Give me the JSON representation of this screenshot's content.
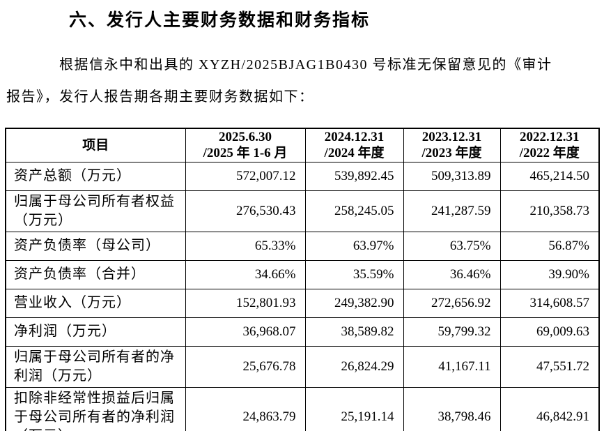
{
  "page": {
    "title": "六、发行人主要财务数据和财务指标",
    "paragraph": {
      "line1": "根据信永中和出具的 XYZH/2025BJAG1B0430 号标准无保留意见的《审计",
      "line2": "报告》，发行人报告期各期主要财务数据如下："
    }
  },
  "table": {
    "columns": [
      {
        "label": "项目"
      },
      {
        "line1": "2025.6.30",
        "line2": "/2025 年 1-6 月"
      },
      {
        "line1": "2024.12.31",
        "line2": "/2024 年度"
      },
      {
        "line1": "2023.12.31",
        "line2": "/2023 年度"
      },
      {
        "line1": "2022.12.31",
        "line2": "/2022 年度"
      }
    ],
    "rows": [
      {
        "label": "资产总额（万元）",
        "values": [
          "572,007.12",
          "539,892.45",
          "509,313.89",
          "465,214.50"
        ]
      },
      {
        "label": "归属于母公司所有者权益（万元）",
        "values": [
          "276,530.43",
          "258,245.05",
          "241,287.59",
          "210,358.73"
        ]
      },
      {
        "label": "资产负债率（母公司）",
        "values": [
          "65.33%",
          "63.97%",
          "63.75%",
          "56.87%"
        ]
      },
      {
        "label": "资产负债率（合并）",
        "values": [
          "34.66%",
          "35.59%",
          "36.46%",
          "39.90%"
        ]
      },
      {
        "label": "营业收入（万元）",
        "values": [
          "152,801.93",
          "249,382.90",
          "272,656.92",
          "314,608.57"
        ]
      },
      {
        "label": "净利润（万元）",
        "values": [
          "36,968.07",
          "38,589.82",
          "59,799.32",
          "69,009.63"
        ]
      },
      {
        "label": "归属于母公司所有者的净利润（万元）",
        "values": [
          "25,676.78",
          "26,824.29",
          "41,167.11",
          "47,551.72"
        ]
      },
      {
        "label": "扣除非经常性损益后归属于母公司所有者的净利润（万元）",
        "values": [
          "24,863.79",
          "25,191.14",
          "38,798.46",
          "46,842.91"
        ]
      }
    ]
  },
  "colors": {
    "text": "#000000",
    "background": "#ffffff",
    "table_border": "#000000"
  }
}
